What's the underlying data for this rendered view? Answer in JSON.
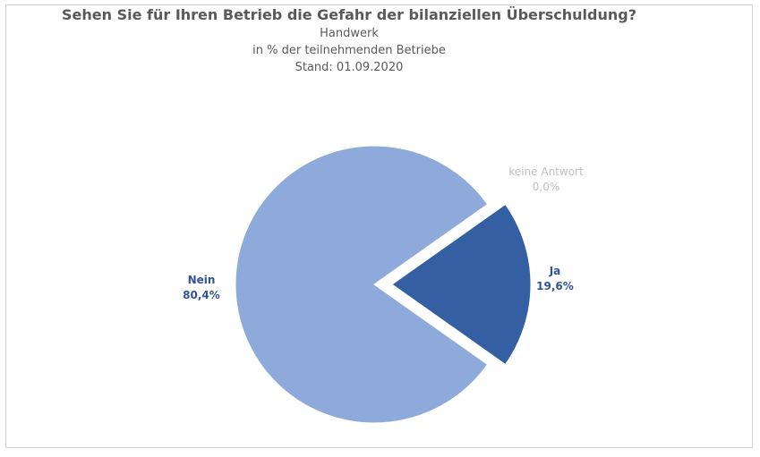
{
  "chart_data": {
    "type": "pie",
    "title": "Sehen Sie für Ihren Betrieb die Gefahr der bilanziellen Überschuldung?",
    "subtitles": [
      "Handwerk",
      "in % der teilnehmenden Betriebe",
      "Stand:  01.09.2020"
    ],
    "slices": [
      {
        "name": "Ja",
        "value": 19.6,
        "label": "19,6%",
        "color": "#355fa3"
      },
      {
        "name": "keine Antwort",
        "value": 0.0,
        "label": "0,0%",
        "color": "#bfbfbf"
      },
      {
        "name": "Nein",
        "value": 80.4,
        "label": "80,4%",
        "color": "#8eaadb"
      }
    ],
    "exploded": "Ja",
    "legend": "none"
  }
}
